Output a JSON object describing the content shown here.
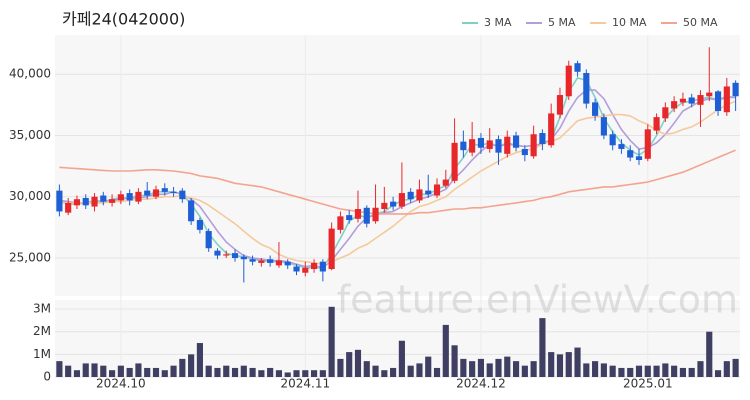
{
  "chart_data": {
    "type": "candlestick",
    "title": "카페24(042000)",
    "watermark": "feature.enViewV.com",
    "categories": [
      null,
      null,
      null,
      null,
      null,
      null,
      null,
      "2024.10",
      null,
      null,
      null,
      null,
      null,
      null,
      null,
      null,
      null,
      null,
      null,
      null,
      null,
      null,
      null,
      null,
      null,
      null,
      null,
      null,
      "2024.11",
      null,
      null,
      null,
      null,
      null,
      null,
      null,
      null,
      null,
      null,
      null,
      null,
      null,
      null,
      null,
      null,
      null,
      null,
      null,
      "2024.12",
      null,
      null,
      null,
      null,
      null,
      null,
      null,
      null,
      null,
      null,
      null,
      null,
      null,
      null,
      null,
      null,
      null,
      null,
      "2025.01",
      null,
      null,
      null,
      null,
      null,
      null,
      null,
      null,
      null,
      null
    ],
    "open": [
      30500,
      28700,
      29300,
      29900,
      29200,
      30100,
      29500,
      29700,
      30300,
      29600,
      30500,
      30000,
      30700,
      30400,
      30500,
      29700,
      28100,
      27200,
      25600,
      25200,
      25400,
      25100,
      24900,
      24600,
      24900,
      24400,
      24700,
      24300,
      23800,
      24100,
      24700,
      24100,
      27300,
      28500,
      28200,
      29100,
      28000,
      29000,
      29600,
      29200,
      30400,
      29700,
      30500,
      30100,
      30900,
      31300,
      34500,
      33600,
      34800,
      33900,
      34700,
      33500,
      35000,
      33900,
      33300,
      35200,
      34200,
      36700,
      38200,
      40900,
      40100,
      37700,
      36500,
      35100,
      34300,
      33800,
      33300,
      33100,
      35400,
      36400,
      37200,
      37700,
      38100,
      37500,
      38200,
      38600,
      36900,
      39300
    ],
    "high": [
      31000,
      29900,
      30100,
      30200,
      30300,
      30400,
      30200,
      30500,
      30600,
      30700,
      31200,
      30900,
      31100,
      30800,
      30700,
      29900,
      28300,
      27400,
      25800,
      25600,
      25700,
      25300,
      25200,
      25000,
      25200,
      26300,
      24900,
      24500,
      24700,
      24900,
      24900,
      27900,
      28800,
      28900,
      30500,
      29300,
      31000,
      30800,
      30000,
      32800,
      30700,
      31400,
      31800,
      31500,
      32200,
      36400,
      35400,
      36100,
      35200,
      35600,
      35000,
      35400,
      35300,
      34200,
      35800,
      35500,
      37600,
      38900,
      41100,
      41100,
      40400,
      38000,
      36800,
      35400,
      34700,
      34200,
      33900,
      35900,
      36800,
      37700,
      38200,
      38500,
      38400,
      38700,
      42200,
      38700,
      39700,
      39500
    ],
    "low": [
      28400,
      28500,
      29000,
      29000,
      28800,
      29300,
      29200,
      29400,
      29300,
      29400,
      29800,
      29800,
      30100,
      30000,
      29500,
      27700,
      27000,
      25500,
      24900,
      25000,
      24700,
      23000,
      24400,
      24300,
      24300,
      24200,
      24100,
      23600,
      23500,
      23800,
      23100,
      24000,
      27000,
      27800,
      27900,
      27500,
      27800,
      28700,
      28900,
      29000,
      29500,
      29500,
      29900,
      29900,
      30700,
      31100,
      33200,
      33300,
      33500,
      33600,
      32600,
      33200,
      33700,
      32900,
      33100,
      33800,
      34000,
      36400,
      37900,
      39800,
      37200,
      36200,
      34700,
      33800,
      33500,
      32900,
      32600,
      32900,
      35100,
      36100,
      36900,
      37400,
      37300,
      35700,
      37800,
      36600,
      36600,
      37000
    ],
    "close": [
      28800,
      29500,
      29800,
      29300,
      30000,
      29600,
      29800,
      30200,
      29700,
      30400,
      30100,
      30600,
      30400,
      30300,
      29800,
      28000,
      27300,
      25800,
      25200,
      25300,
      25000,
      24900,
      24700,
      24800,
      24600,
      24800,
      24400,
      23900,
      24200,
      24600,
      23900,
      27400,
      28400,
      28100,
      29000,
      27800,
      29100,
      29500,
      29200,
      30300,
      29800,
      30600,
      30200,
      31000,
      31400,
      34400,
      33800,
      34700,
      34000,
      34600,
      33600,
      34900,
      34000,
      33400,
      35100,
      34300,
      36800,
      38300,
      40700,
      40200,
      37600,
      36600,
      35000,
      34200,
      33900,
      33200,
      33000,
      35500,
      36500,
      37300,
      37800,
      38000,
      37600,
      38300,
      38500,
      37000,
      39000,
      38200
    ],
    "up_color": "#e8272b",
    "down_color": "#1f5fd6",
    "ylim": [
      21900,
      43200
    ],
    "yticks": [
      {
        "value": 25000,
        "label": "25,000"
      },
      {
        "value": 30000,
        "label": "30,000"
      },
      {
        "value": 35000,
        "label": "35,000"
      },
      {
        "value": 40000,
        "label": "40,000"
      }
    ],
    "grid": true,
    "legend": "top-right",
    "series": [
      {
        "name": "3 MA",
        "color": "#7fd1c8",
        "values": [
          29600,
          29400,
          29400,
          29500,
          29700,
          29600,
          29800,
          29900,
          29900,
          30100,
          30100,
          30400,
          30400,
          30400,
          30200,
          29400,
          28400,
          27000,
          26100,
          25400,
          25200,
          25100,
          24900,
          24800,
          24700,
          24700,
          24600,
          24400,
          24200,
          24200,
          24200,
          25300,
          26600,
          28000,
          28500,
          28300,
          28600,
          28800,
          29300,
          29700,
          29800,
          30200,
          30200,
          30600,
          30900,
          32300,
          33200,
          34300,
          34200,
          34400,
          34100,
          34400,
          34200,
          34100,
          34200,
          34300,
          34700,
          36500,
          38600,
          39700,
          39500,
          38100,
          36400,
          35300,
          34400,
          33800,
          33400,
          33900,
          35000,
          36400,
          37200,
          37700,
          37800,
          38000,
          38100,
          37900,
          38200,
          38100
        ]
      },
      {
        "name": "5 MA",
        "color": "#b39ddb",
        "values": [
          29700,
          29600,
          29500,
          29500,
          29500,
          29600,
          29700,
          29800,
          29900,
          29900,
          30000,
          30200,
          30200,
          30400,
          30200,
          29800,
          29200,
          28200,
          27200,
          26300,
          25700,
          25200,
          25000,
          24900,
          24800,
          24800,
          24700,
          24500,
          24300,
          24400,
          24200,
          24800,
          25700,
          26600,
          27600,
          28300,
          28500,
          28700,
          28800,
          29200,
          29500,
          29800,
          30000,
          30300,
          30600,
          31500,
          32200,
          33000,
          33700,
          34300,
          34100,
          34300,
          34200,
          34100,
          34200,
          34300,
          34700,
          35600,
          37000,
          38100,
          38700,
          38700,
          38000,
          36700,
          35500,
          34600,
          33900,
          34000,
          34400,
          35100,
          36000,
          37000,
          37400,
          37800,
          38000,
          37900,
          38100,
          38100
        ]
      },
      {
        "name": "10 MA",
        "color": "#f5c99b",
        "values": [
          29500,
          29500,
          29500,
          29500,
          29500,
          29500,
          29600,
          29600,
          29700,
          29800,
          29800,
          29900,
          30000,
          30000,
          30100,
          29900,
          29700,
          29300,
          28800,
          28300,
          27800,
          27200,
          26600,
          26100,
          25800,
          25300,
          25000,
          24800,
          24700,
          24600,
          24500,
          24700,
          25000,
          25300,
          25800,
          26100,
          26600,
          27100,
          27600,
          28200,
          28800,
          29200,
          29400,
          29700,
          30000,
          30600,
          31100,
          31600,
          32100,
          32500,
          32900,
          33300,
          33600,
          33800,
          33900,
          34300,
          34500,
          34800,
          35500,
          36200,
          36400,
          36500,
          36600,
          36700,
          36700,
          36600,
          36200,
          35900,
          35400,
          35100,
          35200,
          35500,
          35700,
          36100,
          36600,
          37100,
          37500,
          37800
        ]
      },
      {
        "name": "50 MA",
        "color": "#f4a48e",
        "values": [
          32400,
          32350,
          32300,
          32250,
          32200,
          32150,
          32100,
          32100,
          32100,
          32150,
          32200,
          32200,
          32150,
          32100,
          32000,
          31900,
          31700,
          31600,
          31500,
          31300,
          31100,
          31000,
          30900,
          30800,
          30600,
          30400,
          30200,
          30000,
          29800,
          29600,
          29400,
          29200,
          29000,
          28900,
          28800,
          28700,
          28600,
          28600,
          28600,
          28600,
          28600,
          28700,
          28700,
          28800,
          28900,
          29000,
          29000,
          29100,
          29100,
          29200,
          29300,
          29400,
          29500,
          29600,
          29700,
          29900,
          30000,
          30200,
          30400,
          30500,
          30600,
          30700,
          30800,
          30800,
          30900,
          31000,
          31100,
          31200,
          31400,
          31600,
          31800,
          32000,
          32300,
          32600,
          32900,
          33200,
          33500,
          33800
        ]
      }
    ],
    "volume": {
      "color": "#3f3f63",
      "values": [
        700000,
        500000,
        300000,
        600000,
        600000,
        500000,
        300000,
        500000,
        400000,
        600000,
        400000,
        400000,
        300000,
        500000,
        800000,
        1000000,
        1500000,
        500000,
        400000,
        500000,
        400000,
        500000,
        400000,
        300000,
        400000,
        300000,
        200000,
        300000,
        300000,
        300000,
        300000,
        3100000,
        800000,
        1100000,
        1200000,
        700000,
        500000,
        300000,
        400000,
        1600000,
        500000,
        600000,
        900000,
        400000,
        2300000,
        1400000,
        800000,
        700000,
        800000,
        600000,
        800000,
        900000,
        700000,
        500000,
        700000,
        2600000,
        1100000,
        1000000,
        1100000,
        1300000,
        600000,
        700000,
        600000,
        500000,
        400000,
        400000,
        500000,
        500000,
        500000,
        600000,
        500000,
        400000,
        400000,
        700000,
        2000000,
        300000,
        700000,
        800000
      ],
      "ylim": [
        0,
        3400000
      ],
      "yticks": [
        0,
        {
          "value": 1000000,
          "label": "1M"
        },
        {
          "value": 2000000,
          "label": "2M"
        },
        {
          "value": 3000000,
          "label": "3M"
        }
      ]
    }
  }
}
